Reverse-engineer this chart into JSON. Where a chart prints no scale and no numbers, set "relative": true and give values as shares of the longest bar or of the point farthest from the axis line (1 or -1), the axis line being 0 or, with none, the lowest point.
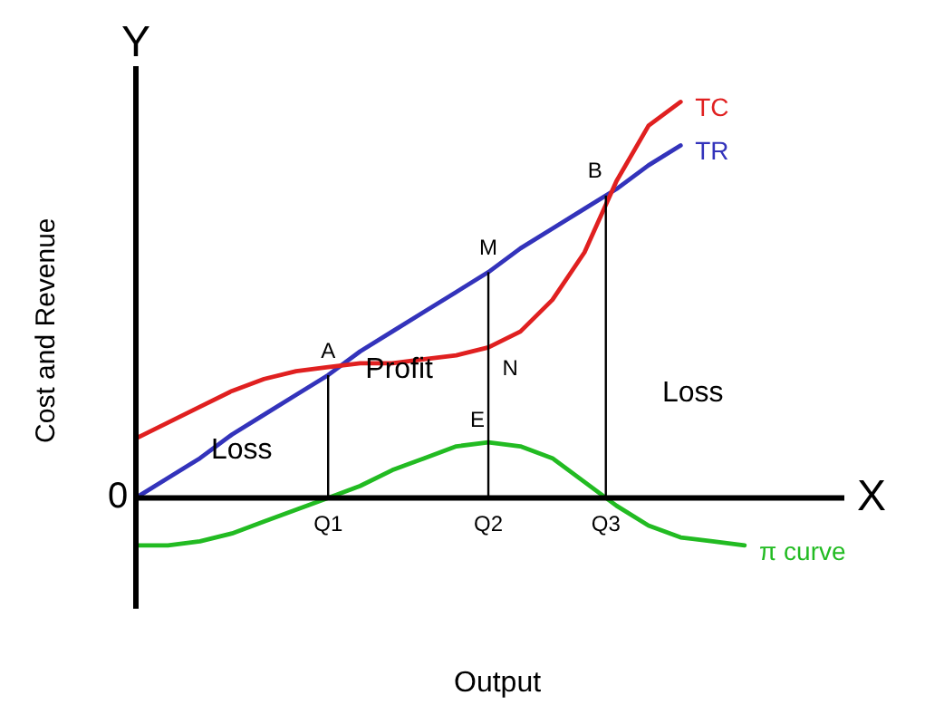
{
  "chart_data": {
    "type": "line",
    "relative": true,
    "marker": "none",
    "xlabel": "Output",
    "ylabel": "Cost and Revenue",
    "categories": [
      null,
      null,
      null,
      null,
      null,
      null,
      null,
      null,
      null,
      null,
      null,
      null,
      null,
      null,
      null,
      null,
      null,
      null,
      null,
      null
    ],
    "series": [
      {
        "name": "TC",
        "color": "#e02020",
        "values": [
          0.15,
          0.19,
          0.23,
          0.27,
          0.3,
          0.32,
          0.33,
          0.34,
          0.34,
          0.35,
          0.36,
          0.38,
          0.42,
          0.5,
          0.62,
          0.8,
          0.94,
          1.0,
          null,
          null
        ]
      },
      {
        "name": "TR",
        "color": "#3333bb",
        "values": [
          0,
          0.05,
          0.1,
          0.16,
          0.21,
          0.26,
          0.31,
          0.37,
          0.42,
          0.47,
          0.52,
          0.57,
          0.63,
          0.68,
          0.73,
          0.78,
          0.84,
          0.89,
          null,
          null
        ]
      },
      {
        "name": "π curve",
        "color": "#22bb22",
        "values": [
          -0.12,
          -0.12,
          -0.11,
          -0.09,
          -0.06,
          -0.03,
          0,
          0.03,
          0.07,
          0.1,
          0.13,
          0.14,
          0.13,
          0.1,
          0.04,
          -0.02,
          -0.07,
          -0.1,
          -0.11,
          -0.12
        ]
      }
    ],
    "annotations": [
      "Y",
      "X",
      "0",
      "A",
      "M",
      "N",
      "E",
      "B",
      "Q1",
      "Q2",
      "Q3",
      "Profit",
      "Loss",
      "Loss"
    ]
  }
}
